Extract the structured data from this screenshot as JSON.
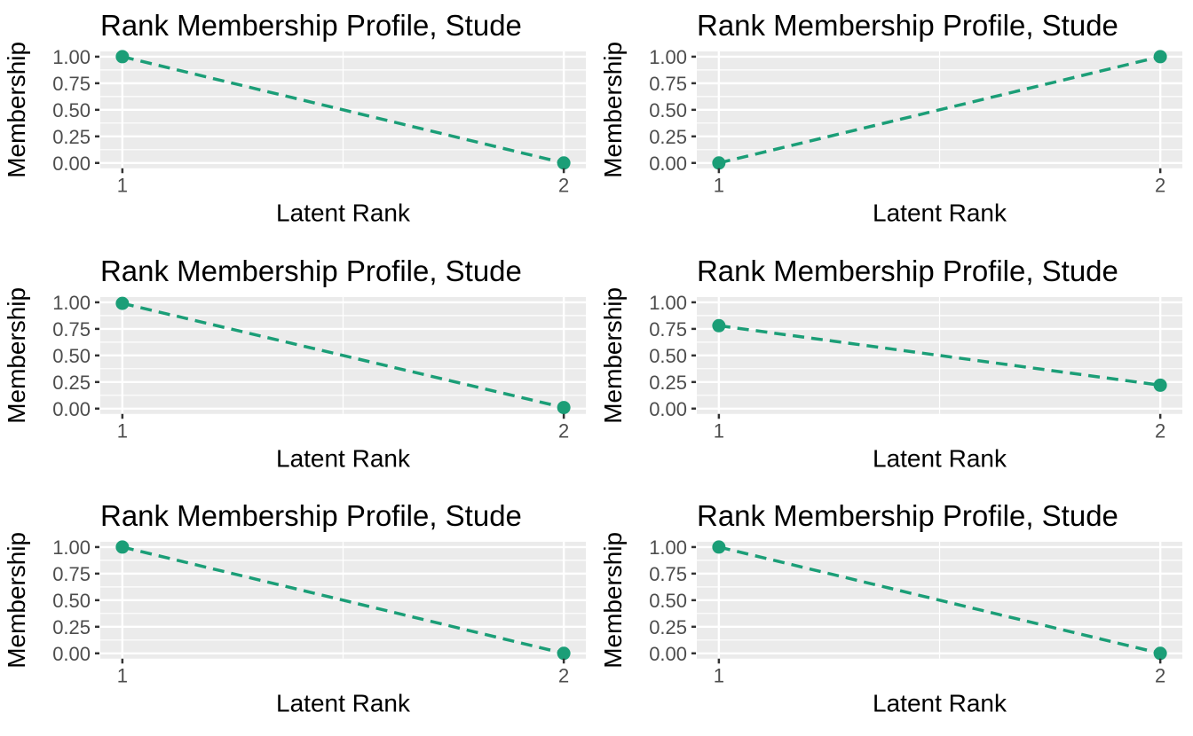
{
  "figure": {
    "background": "#ffffff",
    "layout": "3 rows x 2 columns"
  },
  "colors": {
    "series": "#1b9e77",
    "panel_bg": "#ebebeb",
    "gridline": "#ffffff",
    "tick_label": "#4d4d4d",
    "tick_mark": "#333333",
    "text": "#000000"
  },
  "chart_data": [
    {
      "type": "line",
      "title": "Rank Membership Profile, Stude",
      "xlabel": "Latent Rank",
      "ylabel": "Membership",
      "x": [
        1,
        2
      ],
      "values": [
        1.0,
        0.0
      ],
      "xlim": [
        0.95,
        2.05
      ],
      "ylim": [
        -0.05,
        1.05
      ],
      "x_tick_values": [
        1,
        2
      ],
      "x_ticks": [
        "1",
        "2"
      ],
      "y_tick_values": [
        0,
        0.25,
        0.5,
        0.75,
        1
      ],
      "y_ticks": [
        "0.00",
        "0.25",
        "0.50",
        "0.75",
        "1.00"
      ],
      "x_minor": [
        1.5
      ],
      "y_minor": [
        0.125,
        0.375,
        0.625,
        0.875
      ],
      "line_style": "dashed",
      "marker": "circle",
      "grid": "on",
      "legend": "none"
    },
    {
      "type": "line",
      "title": "Rank Membership Profile, Stude",
      "xlabel": "Latent Rank",
      "ylabel": "Membership",
      "x": [
        1,
        2
      ],
      "values": [
        0.0,
        1.0
      ],
      "xlim": [
        0.95,
        2.05
      ],
      "ylim": [
        -0.05,
        1.05
      ],
      "x_tick_values": [
        1,
        2
      ],
      "x_ticks": [
        "1",
        "2"
      ],
      "y_tick_values": [
        0,
        0.25,
        0.5,
        0.75,
        1
      ],
      "y_ticks": [
        "0.00",
        "0.25",
        "0.50",
        "0.75",
        "1.00"
      ],
      "x_minor": [
        1.5
      ],
      "y_minor": [
        0.125,
        0.375,
        0.625,
        0.875
      ],
      "line_style": "dashed",
      "marker": "circle",
      "grid": "on",
      "legend": "none"
    },
    {
      "type": "line",
      "title": "Rank Membership Profile, Stude",
      "xlabel": "Latent Rank",
      "ylabel": "Membership",
      "x": [
        1,
        2
      ],
      "values": [
        0.99,
        0.01
      ],
      "xlim": [
        0.95,
        2.05
      ],
      "ylim": [
        -0.05,
        1.05
      ],
      "x_tick_values": [
        1,
        2
      ],
      "x_ticks": [
        "1",
        "2"
      ],
      "y_tick_values": [
        0,
        0.25,
        0.5,
        0.75,
        1
      ],
      "y_ticks": [
        "0.00",
        "0.25",
        "0.50",
        "0.75",
        "1.00"
      ],
      "x_minor": [
        1.5
      ],
      "y_minor": [
        0.125,
        0.375,
        0.625,
        0.875
      ],
      "line_style": "dashed",
      "marker": "circle",
      "grid": "on",
      "legend": "none"
    },
    {
      "type": "line",
      "title": "Rank Membership Profile, Stude",
      "xlabel": "Latent Rank",
      "ylabel": "Membership",
      "x": [
        1,
        2
      ],
      "values": [
        0.78,
        0.22
      ],
      "xlim": [
        0.95,
        2.05
      ],
      "ylim": [
        -0.05,
        1.05
      ],
      "x_tick_values": [
        1,
        2
      ],
      "x_ticks": [
        "1",
        "2"
      ],
      "y_tick_values": [
        0,
        0.25,
        0.5,
        0.75,
        1
      ],
      "y_ticks": [
        "0.00",
        "0.25",
        "0.50",
        "0.75",
        "1.00"
      ],
      "x_minor": [
        1.5
      ],
      "y_minor": [
        0.125,
        0.375,
        0.625,
        0.875
      ],
      "line_style": "dashed",
      "marker": "circle",
      "grid": "on",
      "legend": "none"
    },
    {
      "type": "line",
      "title": "Rank Membership Profile, Stude",
      "xlabel": "Latent Rank",
      "ylabel": "Membership",
      "x": [
        1,
        2
      ],
      "values": [
        1.0,
        0.0
      ],
      "xlim": [
        0.95,
        2.05
      ],
      "ylim": [
        -0.05,
        1.05
      ],
      "x_tick_values": [
        1,
        2
      ],
      "x_ticks": [
        "1",
        "2"
      ],
      "y_tick_values": [
        0,
        0.25,
        0.5,
        0.75,
        1
      ],
      "y_ticks": [
        "0.00",
        "0.25",
        "0.50",
        "0.75",
        "1.00"
      ],
      "x_minor": [
        1.5
      ],
      "y_minor": [
        0.125,
        0.375,
        0.625,
        0.875
      ],
      "line_style": "dashed",
      "marker": "circle",
      "grid": "on",
      "legend": "none"
    },
    {
      "type": "line",
      "title": "Rank Membership Profile, Stude",
      "xlabel": "Latent Rank",
      "ylabel": "Membership",
      "x": [
        1,
        2
      ],
      "values": [
        1.0,
        0.0
      ],
      "xlim": [
        0.95,
        2.05
      ],
      "ylim": [
        -0.05,
        1.05
      ],
      "x_tick_values": [
        1,
        2
      ],
      "x_ticks": [
        "1",
        "2"
      ],
      "y_tick_values": [
        0,
        0.25,
        0.5,
        0.75,
        1
      ],
      "y_ticks": [
        "0.00",
        "0.25",
        "0.50",
        "0.75",
        "1.00"
      ],
      "x_minor": [
        1.5
      ],
      "y_minor": [
        0.125,
        0.375,
        0.625,
        0.875
      ],
      "line_style": "dashed",
      "marker": "circle",
      "grid": "on",
      "legend": "none"
    }
  ]
}
